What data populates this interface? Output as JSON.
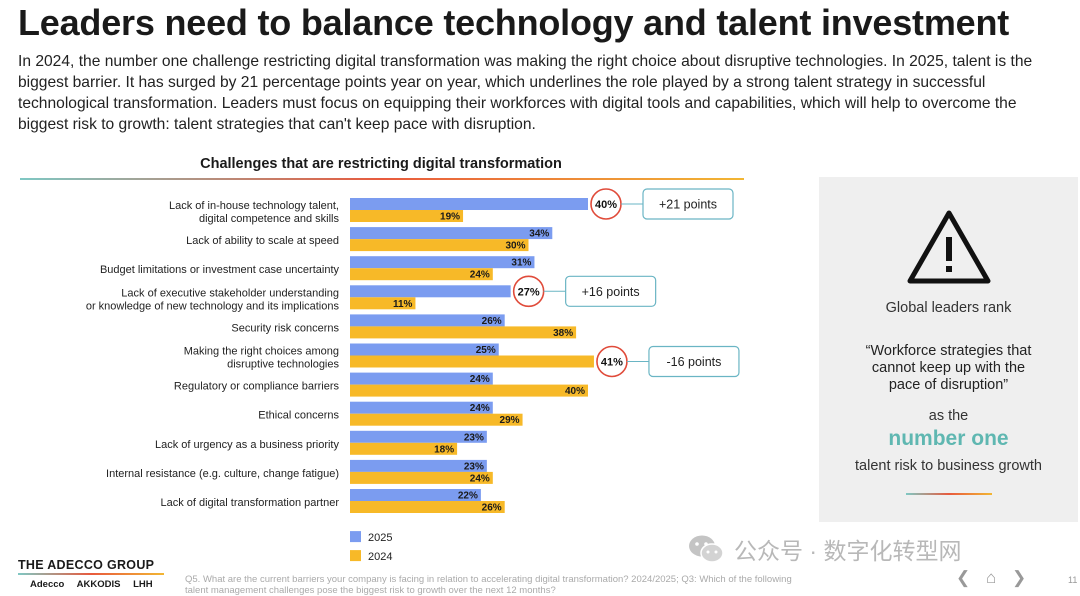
{
  "title": "Leaders need to balance technology and talent investment",
  "intro": "In 2024, the number one challenge restricting digital transformation was making the right choice about disruptive technologies. In 2025, talent is the biggest barrier. It has surged by 21 percentage points year on year, which underlines the role played by a strong talent strategy in successful technological transformation. Leaders must focus on equipping their workforces with digital tools and capabilities, which will help to overcome the biggest risk to growth: talent strategies that can't keep pace with disruption.",
  "colors": {
    "series_2025": "#7b9cf0",
    "series_2024": "#f7b928",
    "accent": "#5fb7b1"
  },
  "chart_data": {
    "type": "bar",
    "orientation": "horizontal",
    "title": "Challenges that are restricting digital transformation",
    "unit": "%",
    "categories": [
      [
        "Lack of in-house technology talent,",
        "digital competence and skills"
      ],
      [
        "Lack of ability to scale at speed"
      ],
      [
        "Budget limitations or investment case uncertainty"
      ],
      [
        "Lack of executive stakeholder understanding",
        "or knowledge of new technology and its implications"
      ],
      [
        "Security risk concerns"
      ],
      [
        "Making the right choices among",
        "disruptive technologies"
      ],
      [
        "Regulatory or compliance barriers"
      ],
      [
        "Ethical concerns"
      ],
      [
        "Lack of urgency as a business priority"
      ],
      [
        "Internal resistance (e.g. culture, change fatigue)"
      ],
      [
        "Lack of digital transformation partner"
      ]
    ],
    "series": [
      {
        "name": "2025",
        "values": [
          40,
          34,
          31,
          27,
          26,
          25,
          24,
          24,
          23,
          23,
          22
        ]
      },
      {
        "name": "2024",
        "values": [
          19,
          30,
          24,
          11,
          38,
          41,
          40,
          29,
          18,
          24,
          26
        ]
      }
    ],
    "callouts": [
      {
        "category_index": 0,
        "series": "2025",
        "label": "40%",
        "change": "+21 points"
      },
      {
        "category_index": 3,
        "series": "2025",
        "label": "27%",
        "change": "+16 points"
      },
      {
        "category_index": 5,
        "series": "2024",
        "label": "41%",
        "change": "-16 points"
      }
    ],
    "legend": [
      "2025",
      "2024"
    ],
    "legend_position": "bottom-left"
  },
  "side_panel": {
    "rank_text": "Global leaders rank",
    "quote": "“Workforce strategies that cannot keep up with the pace of disruption”",
    "as_the": "as the",
    "highlight": "number one",
    "tail": "talent risk to business growth",
    "icon": "warning-triangle-icon"
  },
  "footer": {
    "logo": "THE ADECCO GROUP",
    "brands": [
      "Adecco",
      "AKKODIS",
      "LHH"
    ],
    "footnote": "Q5. What are the current barriers your company is facing in relation to accelerating digital transformation? 2024/2025; Q3: Which of the following talent management challenges pose the biggest risk to growth over the next 12 months?",
    "watermark": "公众号 · 数字化转型网",
    "page_number": "11"
  }
}
